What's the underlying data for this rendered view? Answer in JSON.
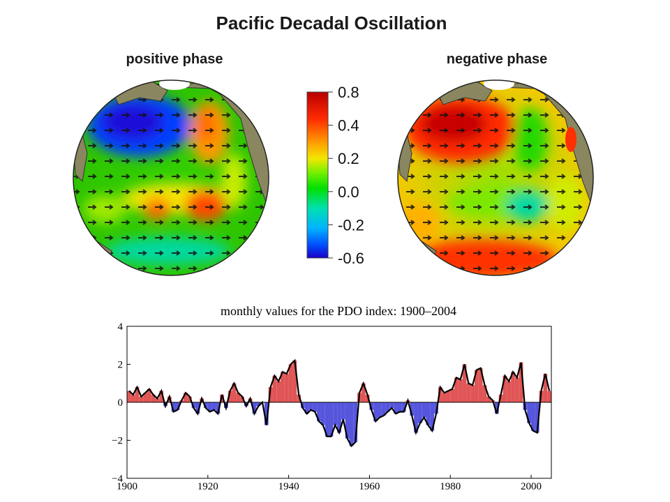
{
  "header": {
    "title": "Pacific Decadal Oscillation"
  },
  "maps": {
    "positive_label": "positive phase",
    "negative_label": "negative phase"
  },
  "colorbar": {
    "tick_labels": [
      "0.8",
      "0.4",
      "0.2",
      "0.0",
      "-0.2",
      "-0.6"
    ],
    "colors": [
      "#b80000",
      "#ff2a00",
      "#ff9a00",
      "#f2e600",
      "#7df000",
      "#00e000",
      "#00e0b0",
      "#00b4ff",
      "#0050ff",
      "#1a00c8"
    ]
  },
  "chart_data": {
    "type": "bar",
    "title": "monthly values for the PDO index: 1900–2004",
    "xlim": [
      1900,
      2005
    ],
    "ylim": [
      -4,
      4
    ],
    "x_ticks": [
      1900,
      1920,
      1940,
      1960,
      1980,
      2000
    ],
    "y_ticks": [
      4,
      2,
      0,
      -2,
      -4
    ],
    "y_tick_labels": [
      "4",
      "2",
      "0",
      "−2",
      "−4"
    ],
    "positive_color": "#e05555",
    "negative_color": "#5555dd",
    "smoothed_color": "#000000",
    "x": [
      1900,
      1901,
      1902,
      1903,
      1904,
      1905,
      1906,
      1907,
      1908,
      1909,
      1910,
      1911,
      1912,
      1913,
      1914,
      1915,
      1916,
      1917,
      1918,
      1919,
      1920,
      1921,
      1922,
      1923,
      1924,
      1925,
      1926,
      1927,
      1928,
      1929,
      1930,
      1931,
      1932,
      1933,
      1934,
      1935,
      1936,
      1937,
      1938,
      1939,
      1940,
      1941,
      1942,
      1943,
      1944,
      1945,
      1946,
      1947,
      1948,
      1949,
      1950,
      1951,
      1952,
      1953,
      1954,
      1955,
      1956,
      1957,
      1958,
      1959,
      1960,
      1961,
      1962,
      1963,
      1964,
      1965,
      1966,
      1967,
      1968,
      1969,
      1970,
      1971,
      1972,
      1973,
      1974,
      1975,
      1976,
      1977,
      1978,
      1979,
      1980,
      1981,
      1982,
      1983,
      1984,
      1985,
      1986,
      1987,
      1988,
      1989,
      1990,
      1991,
      1992,
      1993,
      1994,
      1995,
      1996,
      1997,
      1998,
      1999,
      2000,
      2001,
      2002,
      2003,
      2004
    ],
    "values": [
      0.6,
      0.4,
      0.8,
      0.3,
      0.5,
      0.7,
      0.4,
      0.2,
      0.6,
      -0.2,
      0.3,
      -0.5,
      -0.4,
      0.1,
      0.5,
      0.3,
      -0.3,
      -0.6,
      0.2,
      -0.3,
      -0.5,
      -0.4,
      -0.6,
      0.4,
      -0.3,
      0.6,
      1.0,
      0.5,
      0.3,
      -0.2,
      0.2,
      -0.6,
      -0.2,
      0.0,
      -1.2,
      0.8,
      1.4,
      1.1,
      1.6,
      1.5,
      2.0,
      2.2,
      0.4,
      -0.3,
      -0.6,
      -0.4,
      -0.5,
      -1.0,
      -1.2,
      -1.8,
      -1.8,
      -1.2,
      -1.6,
      -0.9,
      -1.9,
      -2.3,
      -2.1,
      0.5,
      1.0,
      0.4,
      -0.4,
      -1.0,
      -0.8,
      -0.7,
      -0.5,
      -0.3,
      -0.6,
      -0.5,
      -0.5,
      0.1,
      -0.7,
      -1.6,
      -1.1,
      -0.8,
      -1.2,
      -1.5,
      -0.6,
      0.8,
      0.5,
      0.6,
      0.7,
      1.3,
      1.2,
      2.0,
      1.0,
      0.9,
      1.7,
      1.8,
      0.9,
      0.3,
      0.1,
      -0.6,
      0.4,
      1.4,
      1.1,
      1.6,
      1.3,
      2.1,
      -0.4,
      -1.1,
      -1.5,
      -1.6,
      0.6,
      1.5,
      0.6
    ]
  }
}
